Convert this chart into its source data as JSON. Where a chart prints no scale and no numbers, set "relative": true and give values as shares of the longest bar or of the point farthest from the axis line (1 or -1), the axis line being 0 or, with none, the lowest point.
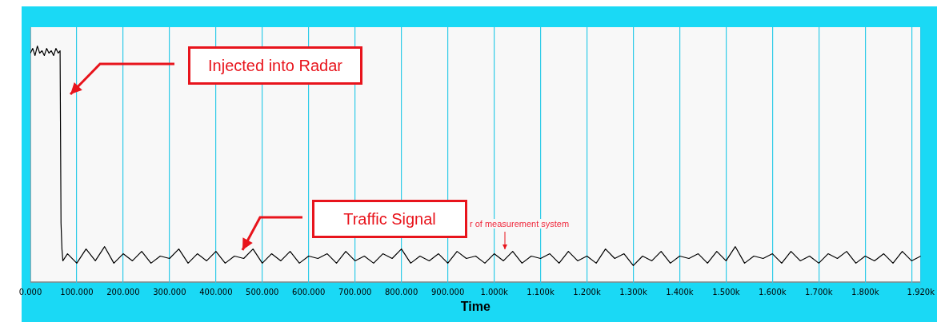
{
  "chart_data": {
    "type": "line",
    "relative": true,
    "xlabel": "Time",
    "color": "#000000",
    "grid": "x",
    "legend": false,
    "marker": "none",
    "line_style": "solid",
    "x": [
      0,
      5,
      10,
      15,
      20,
      25,
      30,
      35,
      40,
      45,
      50,
      55,
      60,
      64,
      66,
      68,
      70,
      80,
      100,
      120,
      140,
      160,
      180,
      200,
      220,
      240,
      260,
      280,
      300,
      320,
      340,
      360,
      380,
      400,
      420,
      440,
      460,
      480,
      500,
      520,
      540,
      560,
      580,
      600,
      620,
      640,
      660,
      680,
      700,
      720,
      740,
      760,
      780,
      800,
      820,
      840,
      860,
      880,
      900,
      920,
      940,
      960,
      980,
      1000,
      1020,
      1040,
      1060,
      1080,
      1100,
      1120,
      1140,
      1160,
      1180,
      1200,
      1220,
      1240,
      1260,
      1280,
      1300,
      1320,
      1340,
      1360,
      1380,
      1400,
      1420,
      1440,
      1460,
      1480,
      1500,
      1520,
      1540,
      1560,
      1580,
      1600,
      1620,
      1640,
      1660,
      1680,
      1700,
      1720,
      1740,
      1760,
      1780,
      1800,
      1820,
      1840,
      1860,
      1880,
      1900,
      1920
    ],
    "values": [
      0.97,
      0.99,
      0.96,
      1.0,
      0.97,
      0.98,
      0.96,
      0.99,
      0.97,
      0.98,
      0.96,
      0.99,
      0.97,
      0.98,
      0.25,
      0.14,
      0.09,
      0.12,
      0.08,
      0.14,
      0.09,
      0.15,
      0.08,
      0.12,
      0.09,
      0.13,
      0.08,
      0.11,
      0.1,
      0.14,
      0.08,
      0.12,
      0.09,
      0.13,
      0.08,
      0.11,
      0.1,
      0.14,
      0.08,
      0.12,
      0.09,
      0.13,
      0.08,
      0.11,
      0.1,
      0.12,
      0.08,
      0.13,
      0.09,
      0.11,
      0.08,
      0.12,
      0.1,
      0.14,
      0.08,
      0.11,
      0.09,
      0.12,
      0.08,
      0.13,
      0.1,
      0.11,
      0.08,
      0.12,
      0.09,
      0.13,
      0.08,
      0.11,
      0.1,
      0.12,
      0.08,
      0.13,
      0.09,
      0.11,
      0.08,
      0.14,
      0.1,
      0.12,
      0.07,
      0.11,
      0.09,
      0.13,
      0.08,
      0.11,
      0.1,
      0.12,
      0.08,
      0.13,
      0.09,
      0.15,
      0.08,
      0.11,
      0.1,
      0.12,
      0.08,
      0.13,
      0.09,
      0.11,
      0.08,
      0.12,
      0.1,
      0.13,
      0.08,
      0.11,
      0.09,
      0.12,
      0.08,
      0.13,
      0.09,
      0.11
    ],
    "xlim": [
      0,
      1920
    ],
    "xticks": [
      {
        "value": 0,
        "label": "0.000"
      },
      {
        "value": 100,
        "label": "100.000"
      },
      {
        "value": 200,
        "label": "200.000"
      },
      {
        "value": 300,
        "label": "300.000"
      },
      {
        "value": 400,
        "label": "400.000"
      },
      {
        "value": 500,
        "label": "500.000"
      },
      {
        "value": 600,
        "label": "600.000"
      },
      {
        "value": 700,
        "label": "700.000"
      },
      {
        "value": 800,
        "label": "800.000"
      },
      {
        "value": 900,
        "label": "900.000"
      },
      {
        "value": 1000,
        "label": "1.000k"
      },
      {
        "value": 1100,
        "label": "1.100k"
      },
      {
        "value": 1200,
        "label": "1.200k"
      },
      {
        "value": 1300,
        "label": "1.300k"
      },
      {
        "value": 1400,
        "label": "1.400k"
      },
      {
        "value": 1500,
        "label": "1.500k"
      },
      {
        "value": 1600,
        "label": "1.600k"
      },
      {
        "value": 1700,
        "label": "1.700k"
      },
      {
        "value": 1800,
        "label": "1.800k"
      },
      {
        "value": 1900,
        "label": null
      },
      {
        "value": 1920,
        "label": "1.920k"
      }
    ],
    "annotations": [
      "Injected into Radar",
      "Traffic Signal",
      "r of measurement system"
    ]
  }
}
